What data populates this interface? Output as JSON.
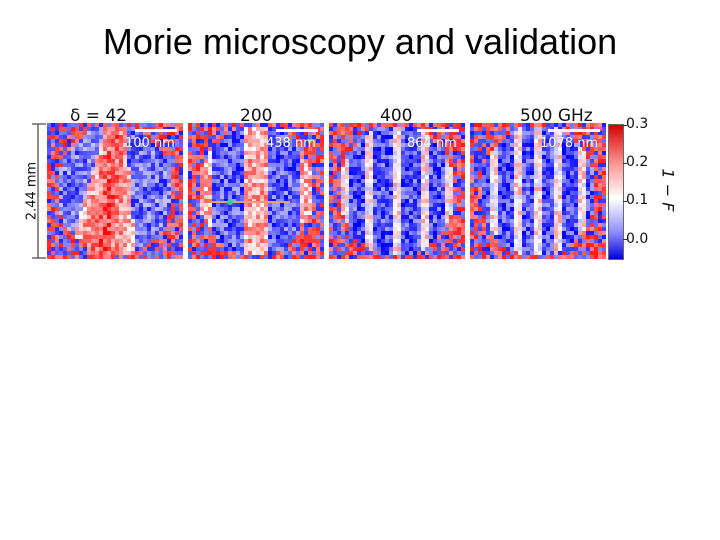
{
  "title": "Morie microscopy and validation",
  "panels": [
    {
      "label": "δ = 42",
      "scale_text": "100 nm"
    },
    {
      "label": "200",
      "scale_text": "438 nm"
    },
    {
      "label": "400",
      "scale_text": "864 nm"
    },
    {
      "label": "500 GHz",
      "scale_text": "1078 nm"
    }
  ],
  "height_label": "2.44 mm",
  "colorbar": {
    "label": "1 − F",
    "ticks": [
      "0.3",
      "0.2",
      "0.1",
      "0.0"
    ],
    "colors": {
      "high": "#d40000",
      "mid": "#ffffff",
      "low": "#0000d8"
    }
  }
}
